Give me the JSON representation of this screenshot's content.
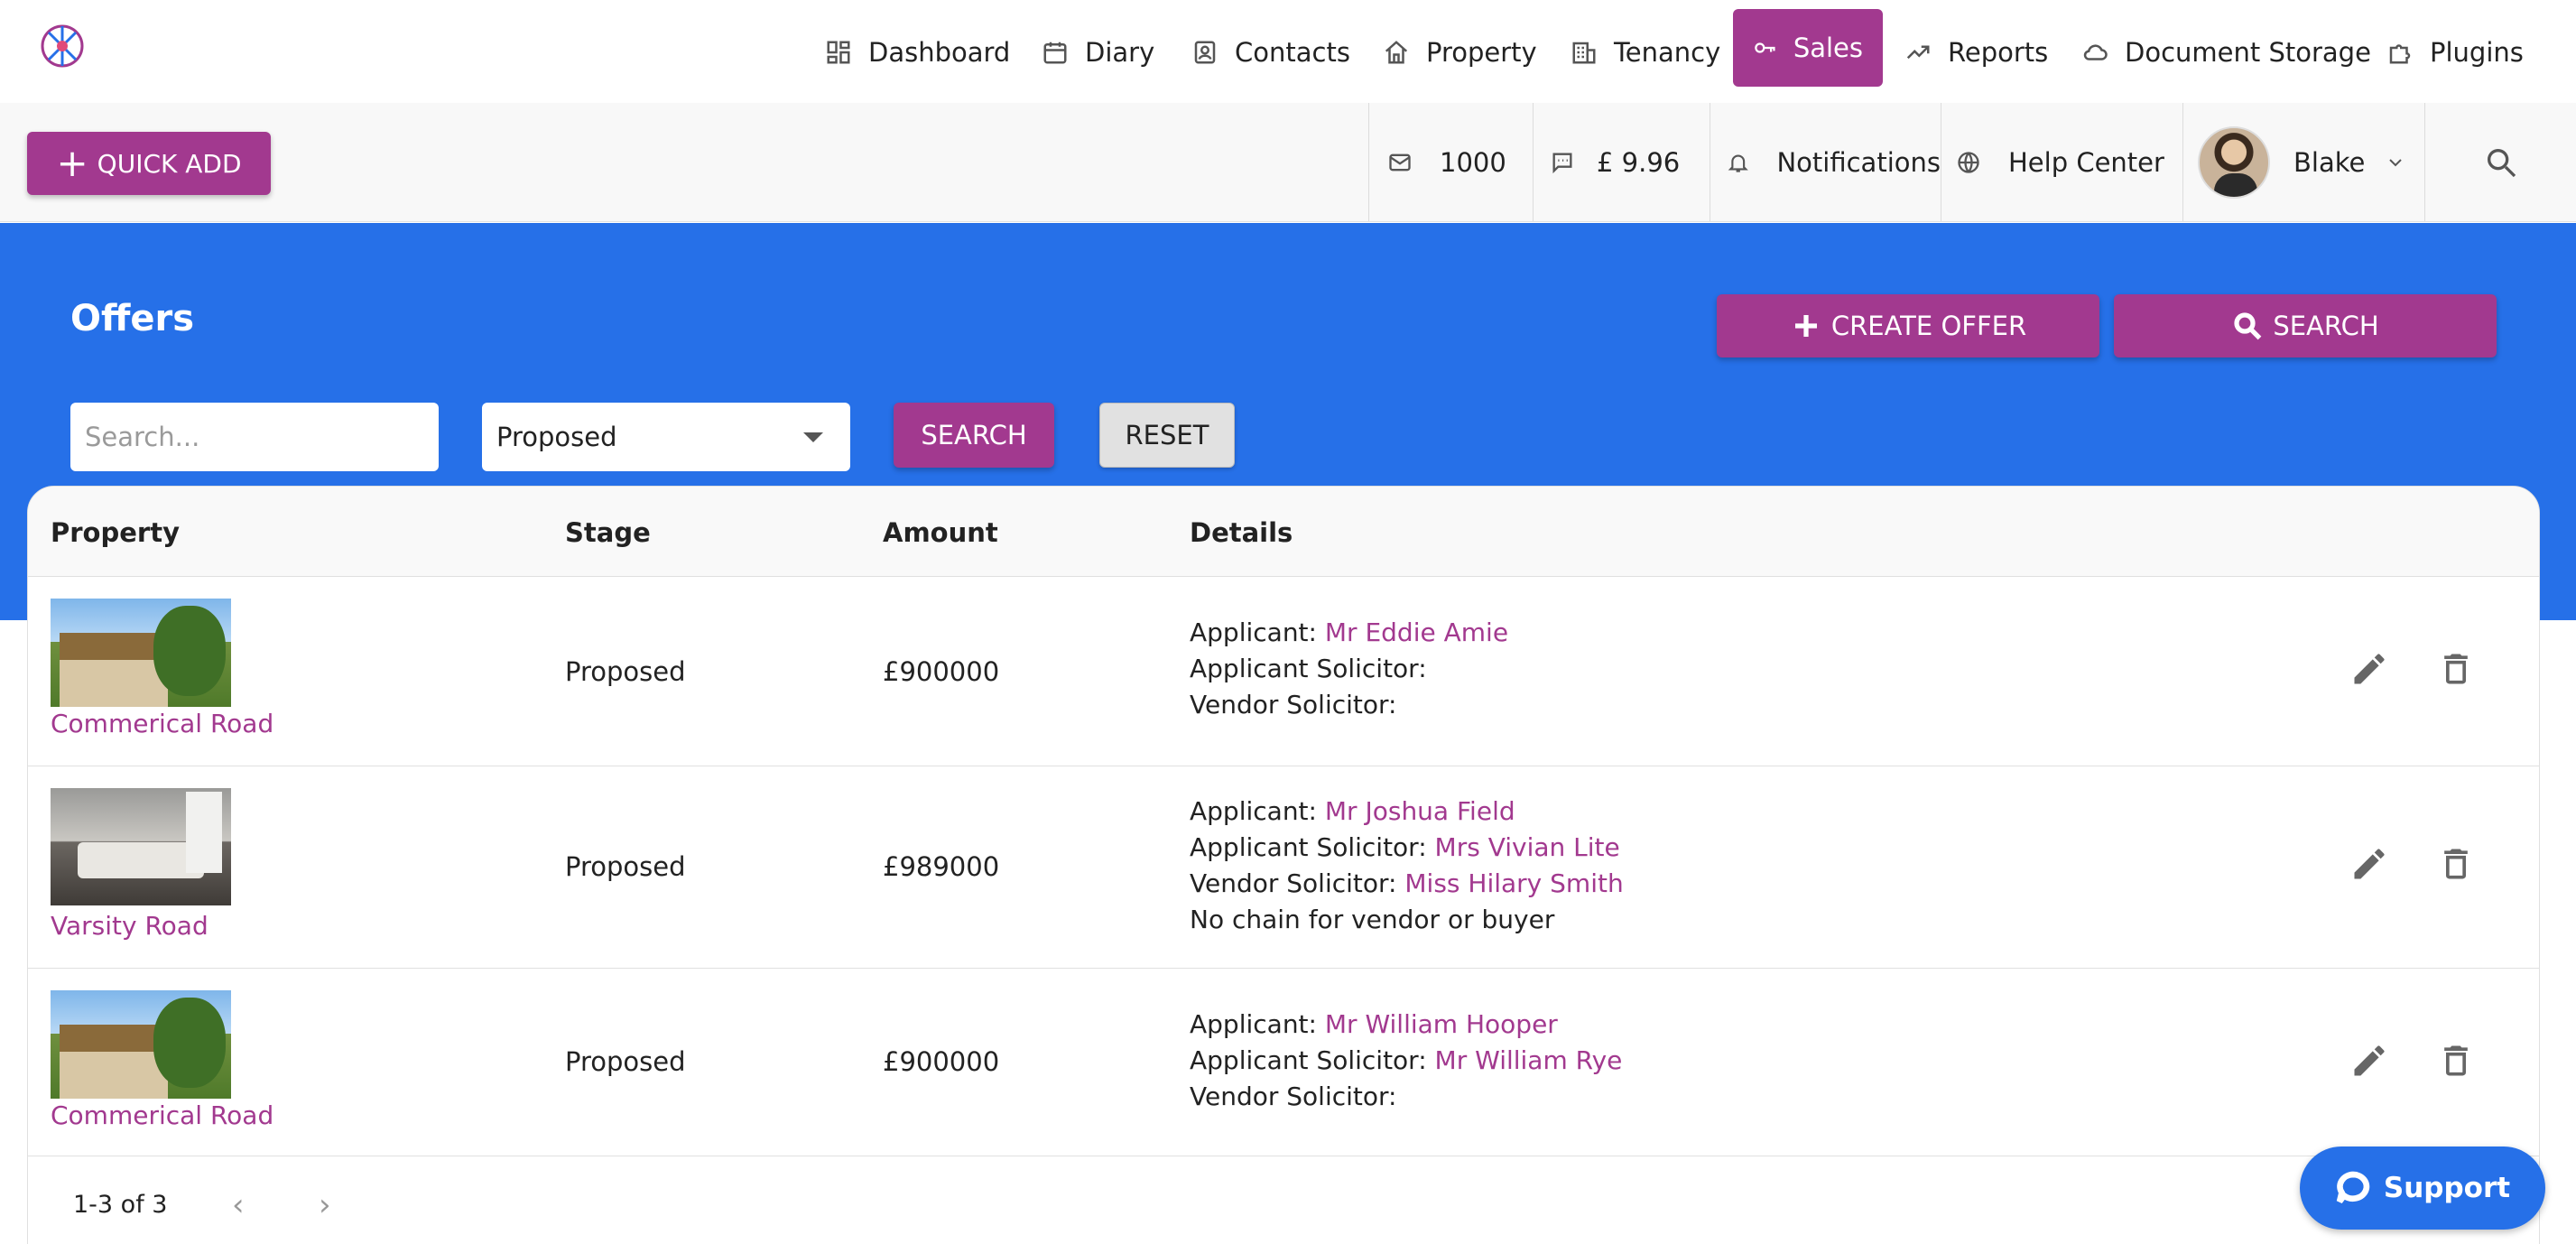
{
  "nav": {
    "items": [
      {
        "label": "Dashboard",
        "icon": "dashboard-icon",
        "active": false
      },
      {
        "label": "Diary",
        "icon": "calendar-icon",
        "active": false
      },
      {
        "label": "Contacts",
        "icon": "contacts-icon",
        "active": false
      },
      {
        "label": "Property",
        "icon": "home-icon",
        "active": false
      },
      {
        "label": "Tenancy",
        "icon": "building-icon",
        "active": false
      },
      {
        "label": "Sales",
        "icon": "key-icon",
        "active": true
      },
      {
        "label": "Reports",
        "icon": "trend-icon",
        "active": false
      },
      {
        "label": "Document Storage",
        "icon": "cloud-icon",
        "active": false
      },
      {
        "label": "Plugins",
        "icon": "puzzle-icon",
        "active": false
      }
    ]
  },
  "toolbar": {
    "quick_add": "QUICK ADD",
    "email_credits": "1000",
    "sms_balance": "£ 9.96",
    "notifications": "Notifications",
    "help_center": "Help Center",
    "user_name": "Blake"
  },
  "page": {
    "title": "Offers",
    "create_offer": "CREATE OFFER",
    "search_button": "SEARCH",
    "search_placeholder": "Search...",
    "stage_filter": "Proposed",
    "filter_search": "SEARCH",
    "reset": "RESET"
  },
  "table": {
    "columns": [
      "Property",
      "Stage",
      "Amount",
      "Details"
    ],
    "rows": [
      {
        "property": "Commerical Road",
        "image": "cottage",
        "stage": "Proposed",
        "amount": "£900000",
        "details": {
          "applicant_label": "Applicant:",
          "applicant": "Mr Eddie Amie",
          "applicant_solicitor_label": "Applicant Solicitor:",
          "applicant_solicitor": "",
          "vendor_solicitor_label": "Vendor Solicitor:",
          "vendor_solicitor": "",
          "note": ""
        }
      },
      {
        "property": "Varsity Road",
        "image": "bedroom",
        "stage": "Proposed",
        "amount": "£989000",
        "details": {
          "applicant_label": "Applicant:",
          "applicant": "Mr Joshua Field",
          "applicant_solicitor_label": "Applicant Solicitor:",
          "applicant_solicitor": "Mrs Vivian Lite",
          "vendor_solicitor_label": "Vendor Solicitor:",
          "vendor_solicitor": "Miss Hilary Smith",
          "note": "No chain for vendor or buyer"
        }
      },
      {
        "property": "Commerical Road",
        "image": "cottage",
        "stage": "Proposed",
        "amount": "£900000",
        "details": {
          "applicant_label": "Applicant:",
          "applicant": "Mr William Hooper",
          "applicant_solicitor_label": "Applicant Solicitor:",
          "applicant_solicitor": "Mr William Rye",
          "vendor_solicitor_label": "Vendor Solicitor:",
          "vendor_solicitor": "",
          "note": ""
        }
      }
    ]
  },
  "pager": {
    "range": "1-3 of 3",
    "prev": "‹",
    "next": "›"
  },
  "support": {
    "label": "Support"
  },
  "colors": {
    "brand": "#a2398f",
    "band": "#2670e8"
  }
}
